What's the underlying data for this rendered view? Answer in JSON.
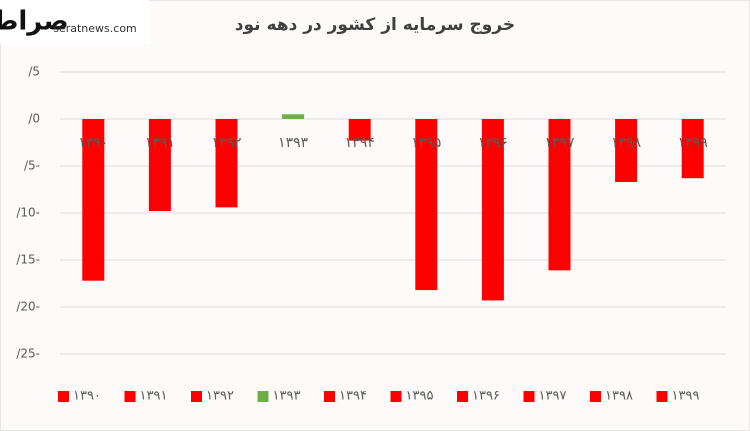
{
  "watermark": {
    "logo": "صراط",
    "site": "seratnews.com"
  },
  "chart_data": {
    "type": "bar",
    "title": "خروج سرمایه از کشور در دهه نود",
    "categories": [
      "۱۳۹۰",
      "۱۳۹۱",
      "۱۳۹۲",
      "۱۳۹۳",
      "۱۳۹۴",
      "۱۳۹۵",
      "۱۳۹۶",
      "۱۳۹۷",
      "۱۳۹۸",
      "۱۳۹۹"
    ],
    "values": [
      -17.2,
      -9.8,
      -9.4,
      0.5,
      -2.3,
      -18.2,
      -19.3,
      -16.1,
      -6.7,
      -6.3
    ],
    "colors": [
      "#ff0000",
      "#ff0000",
      "#ff0000",
      "#70ad47",
      "#ff0000",
      "#ff0000",
      "#ff0000",
      "#ff0000",
      "#ff0000",
      "#ff0000"
    ],
    "ylim": [
      5,
      -25
    ],
    "yticks": [
      {
        "value": 5,
        "label": "/5"
      },
      {
        "value": 0,
        "label": "/0"
      },
      {
        "value": -5,
        "label": "/5-"
      },
      {
        "value": -10,
        "label": "/10-"
      },
      {
        "value": -15,
        "label": "/15-"
      },
      {
        "value": -20,
        "label": "/20-"
      },
      {
        "value": -25,
        "label": "/25-"
      }
    ],
    "grid": true,
    "legend": "bottom"
  }
}
